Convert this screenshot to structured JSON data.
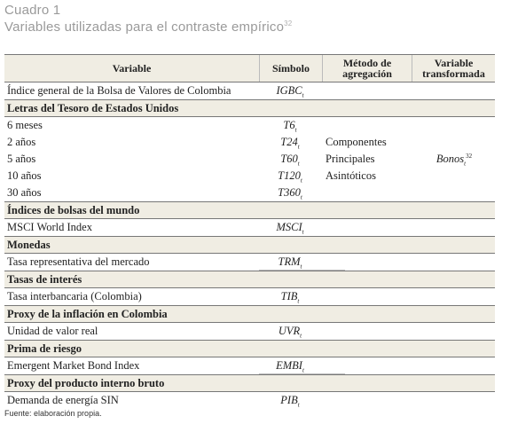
{
  "title": "Cuadro 1",
  "subtitle": "Variables utilizadas para el contraste empírico",
  "subtitle_note": "32",
  "headers": {
    "variable": "Variable",
    "simbolo": "Símbolo",
    "metodo_l1": "Método de",
    "metodo_l2": "agregación",
    "transformada_l1": "Variable",
    "transformada_l2": "transformada"
  },
  "rows": {
    "igbc": {
      "label": "Índice general de la Bolsa de Valores de Colombia",
      "sym": "IGBC",
      "sub": "t"
    },
    "letras": {
      "label": "Letras del Tesoro de Estados Unidos"
    },
    "t6": {
      "label": "6 meses",
      "sym": "T6",
      "sub": "t"
    },
    "t24": {
      "label": "2 años",
      "sym": "T24",
      "sub": "t",
      "method": "Componentes"
    },
    "t60": {
      "label": "5 años",
      "sym": "T60",
      "sub": "t",
      "method": "Principales",
      "trans": "Bonos",
      "trans_sub": "t",
      "trans_sup": "32"
    },
    "t120": {
      "label": "10 años",
      "sym": "T120",
      "sub": "t",
      "method": "Asintóticos"
    },
    "t360": {
      "label": "30 años",
      "sym": "T360",
      "sub": "t"
    },
    "indices": {
      "label": "Índices de bolsas del mundo"
    },
    "msci": {
      "label": "MSCI World Index",
      "sym": "MSCI",
      "sub": "t"
    },
    "monedas": {
      "label": "Monedas"
    },
    "trm": {
      "label": "Tasa representativa del mercado",
      "sym": "TRM",
      "sub": "t"
    },
    "tasas": {
      "label": "Tasas de interés"
    },
    "tib": {
      "label": "Tasa interbancaria (Colombia)",
      "sym": "TIB",
      "sub": "t"
    },
    "inflacion": {
      "label": "Proxy de la inflación en Colombia"
    },
    "uvr": {
      "label": "Unidad de valor real",
      "sym": "UVR",
      "sub": "t"
    },
    "prima": {
      "label": "Prima de riesgo"
    },
    "embi": {
      "label": "Emergent Market Bond Index",
      "sym": "EMBI",
      "sub": "t"
    },
    "pib_sec": {
      "label": "Proxy del producto interno bruto"
    },
    "pib": {
      "label": "Demanda de energía SIN",
      "sym": "PIB",
      "sub": "t"
    }
  },
  "footnote": "Fuente: elaboración propia."
}
